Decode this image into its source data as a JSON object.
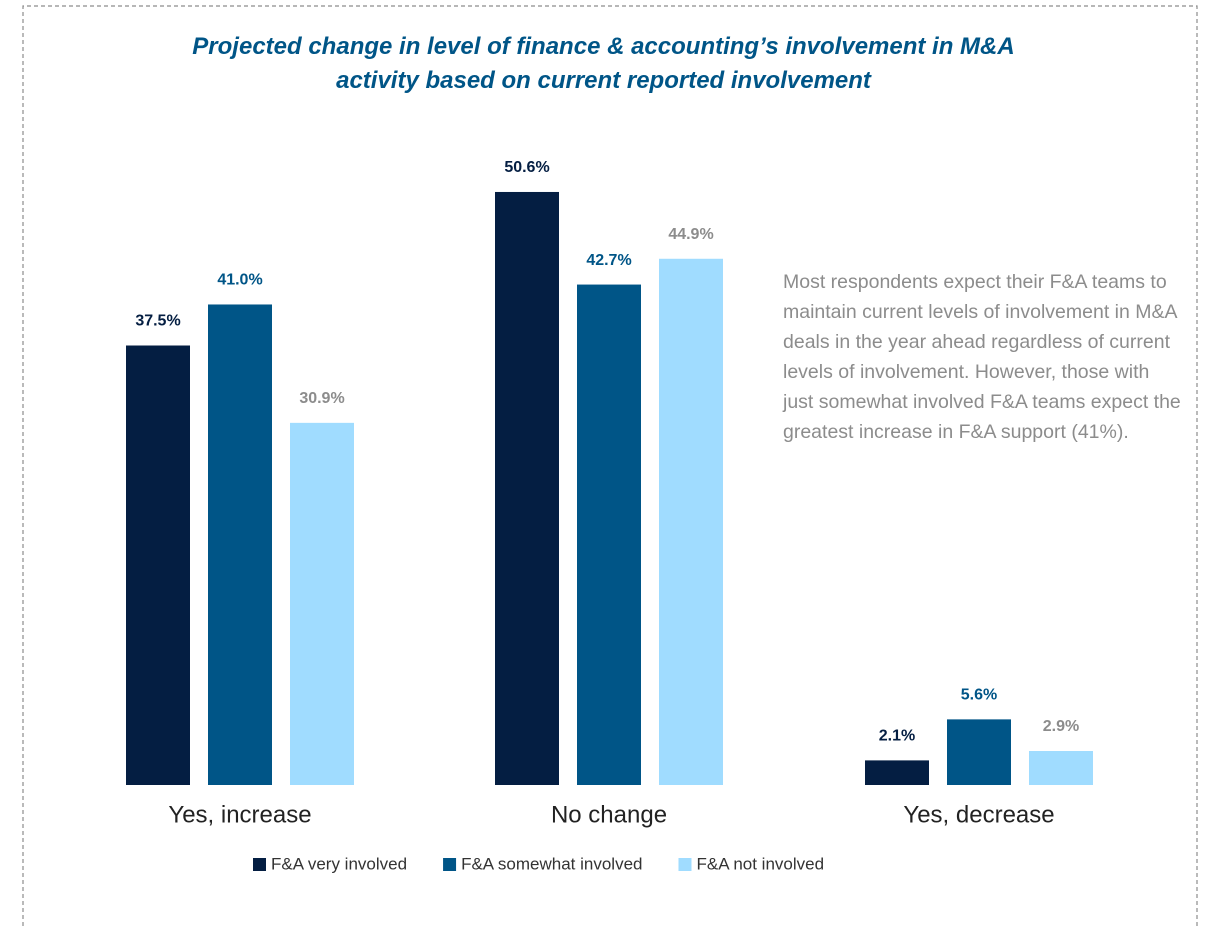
{
  "chart_data": {
    "type": "bar",
    "title": "Projected change in level of finance & accounting’s involvement in M&A activity based on current reported involvement",
    "annotation": "Most respondents expect their F&A teams to maintain current levels of involvement in M&A deals in the year ahead regardless of current levels of involvement. However, those with just somewhat involved F&A teams expect the greatest increase in F&A support (41%).",
    "categories": [
      "Yes, increase",
      "No change",
      "Yes, decrease"
    ],
    "series": [
      {
        "name": "F&A very involved",
        "color": "#041e42",
        "label_color": "#041e42",
        "values": [
          37.5,
          50.6,
          2.1
        ],
        "value_labels": [
          "37.5%",
          "50.6%",
          "2.1%"
        ]
      },
      {
        "name": "F&A somewhat involved",
        "color": "#005587",
        "label_color": "#005587",
        "values": [
          41.0,
          42.7,
          5.6
        ],
        "value_labels": [
          "41.0%",
          "42.7%",
          "5.6%"
        ]
      },
      {
        "name": "F&A not involved",
        "color": "#a0dcff",
        "label_color": "#8c8c8c",
        "values": [
          30.9,
          44.9,
          2.9
        ],
        "value_labels": [
          "30.9%",
          "44.9%",
          "2.9%"
        ]
      }
    ],
    "legend": "bottom"
  }
}
